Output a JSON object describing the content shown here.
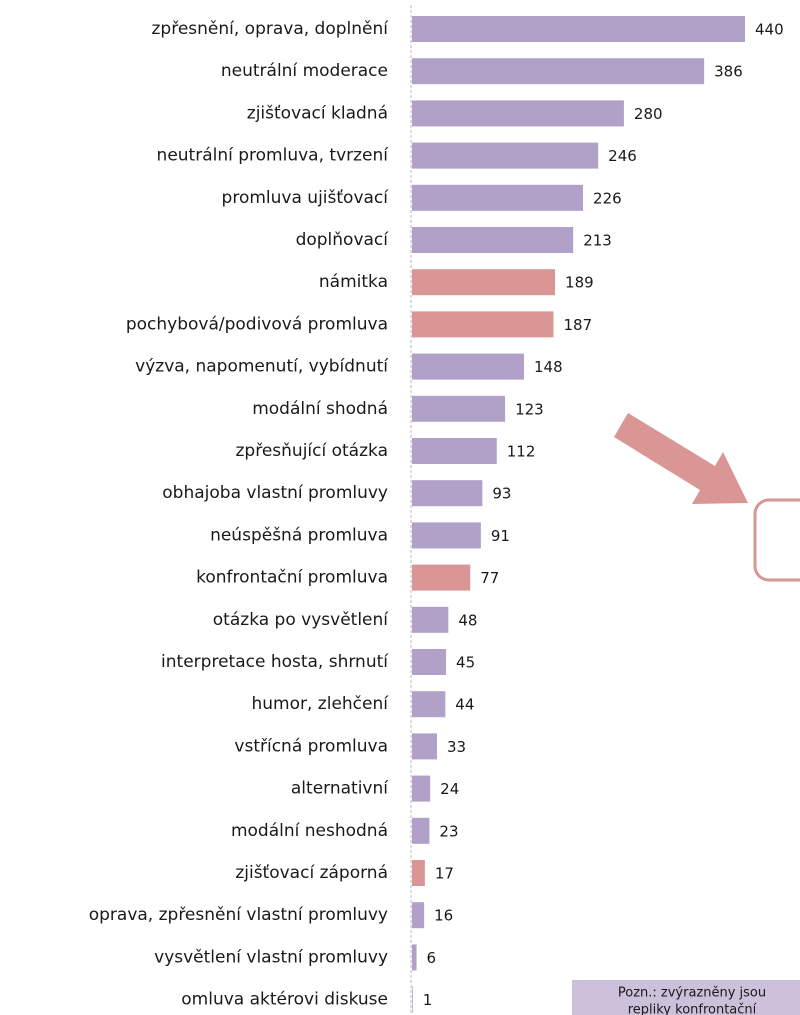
{
  "chart_data": {
    "type": "bar",
    "orientation": "horizontal",
    "categories": [
      "zpřesnění, oprava, doplnění",
      "neutrální moderace",
      "zjišťovací kladná",
      "neutrální promluva, tvrzení",
      "promluva ujišťovací",
      "doplňovací",
      "námitka",
      "pochybová/podivová promluva",
      "výzva, napomenutí, vybídnutí",
      "modální shodná",
      "zpřesňující otázka",
      "obhajoba vlastní promluvy",
      "neúspěšná promluva",
      "konfrontační promluva",
      "otázka po vysvětlení",
      "interpretace hosta, shrnutí",
      "humor, zlehčení",
      "vstřícná promluva",
      "alternativní",
      "modální neshodná",
      "zjišťovací záporná",
      "oprava, zpřesnění vlastní promluvy",
      "vysvětlení vlastní promluvy",
      "omluva aktérovi diskuse"
    ],
    "values": [
      440,
      386,
      280,
      246,
      226,
      213,
      189,
      187,
      148,
      123,
      112,
      93,
      91,
      77,
      48,
      45,
      44,
      33,
      24,
      23,
      17,
      16,
      6,
      1
    ],
    "colors": [
      "#b1a0c7",
      "#b1a0c7",
      "#b1a0c7",
      "#b1a0c7",
      "#b1a0c7",
      "#b1a0c7",
      "#d99694",
      "#d99694",
      "#b1a0c7",
      "#b1a0c7",
      "#b1a0c7",
      "#b1a0c7",
      "#b1a0c7",
      "#d99694",
      "#b1a0c7",
      "#b1a0c7",
      "#b1a0c7",
      "#b1a0c7",
      "#b1a0c7",
      "#b1a0c7",
      "#d99694",
      "#b1a0c7",
      "#b1a0c7",
      "#b1a0c7"
    ],
    "annotations": [
      "Pozn.: zvýrazněny jsou",
      "repliky konfrontační"
    ]
  }
}
